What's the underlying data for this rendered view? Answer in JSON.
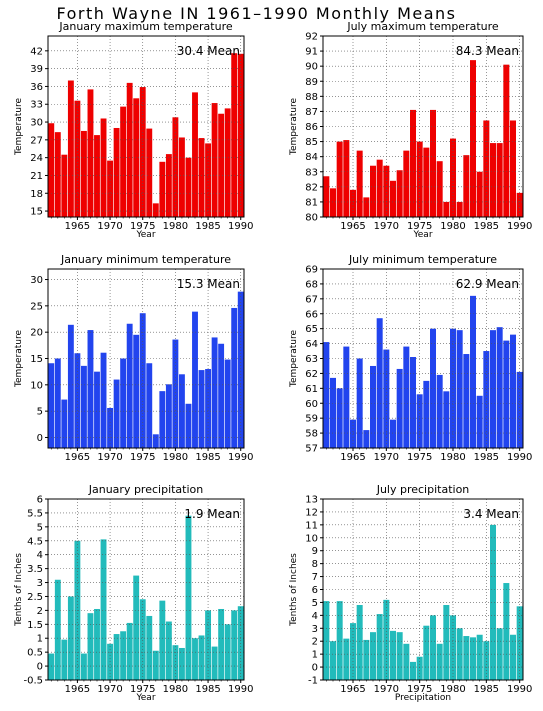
{
  "page": {
    "title": "Forth Wayne IN   1961–1990 Monthly Means"
  },
  "years": [
    1961,
    1962,
    1963,
    1964,
    1965,
    1966,
    1967,
    1968,
    1969,
    1970,
    1971,
    1972,
    1973,
    1974,
    1975,
    1976,
    1977,
    1978,
    1979,
    1980,
    1981,
    1982,
    1983,
    1984,
    1985,
    1986,
    1987,
    1988,
    1989,
    1990
  ],
  "chart_data": [
    {
      "type": "bar",
      "title": "January maximum temperature",
      "ylabel": "Temperature",
      "xlabel": "Year",
      "mean_label": "30.4  Mean",
      "color": "#ee0000",
      "ylim": [
        14,
        44.5
      ],
      "yticks": [
        15,
        18,
        21,
        24,
        27,
        30,
        33,
        36,
        39,
        42
      ],
      "xticks": [
        1965,
        1970,
        1975,
        1980,
        1985,
        1990
      ],
      "values": [
        29.8,
        28.3,
        24.5,
        37.0,
        33.6,
        28.5,
        35.5,
        27.8,
        30.6,
        23.5,
        29.0,
        32.6,
        36.6,
        34.0,
        35.9,
        28.9,
        16.3,
        23.3,
        24.6,
        30.8,
        27.4,
        24.0,
        35.0,
        27.3,
        26.4,
        33.2,
        31.4,
        32.3,
        41.6,
        41.5
      ]
    },
    {
      "type": "bar",
      "title": "July maximum temperature",
      "ylabel": "Temperature",
      "xlabel": "Year",
      "mean_label": "84.3  Mean",
      "color": "#ee0000",
      "ylim": [
        80,
        92
      ],
      "yticks": [
        80,
        81,
        82,
        83,
        84,
        85,
        86,
        87,
        88,
        89,
        90,
        91,
        92
      ],
      "xticks": [
        1965,
        1970,
        1975,
        1980,
        1985,
        1990
      ],
      "values": [
        82.7,
        81.9,
        85.0,
        85.1,
        81.8,
        84.4,
        81.3,
        83.4,
        83.8,
        83.4,
        82.4,
        83.1,
        84.4,
        87.1,
        85.0,
        84.6,
        87.1,
        83.7,
        81.0,
        85.2,
        81.0,
        84.1,
        90.4,
        83.0,
        86.4,
        84.9,
        84.9,
        90.1,
        86.4,
        81.6
      ]
    },
    {
      "type": "bar",
      "title": "January minimum temperature",
      "ylabel": "Temperature",
      "xlabel": "",
      "mean_label": "15.3  Mean",
      "color": "#2244ee",
      "ylim": [
        -2,
        32
      ],
      "yticks": [
        0,
        5,
        10,
        15,
        20,
        25,
        30
      ],
      "xticks": [
        1965,
        1970,
        1975,
        1980,
        1985,
        1990
      ],
      "values": [
        14.1,
        15.0,
        7.2,
        21.4,
        16.0,
        13.6,
        20.4,
        12.5,
        16.1,
        5.6,
        11.0,
        15.0,
        21.6,
        19.5,
        23.6,
        14.1,
        0.6,
        8.8,
        10.1,
        18.6,
        12.0,
        6.4,
        23.9,
        12.8,
        13.0,
        19.0,
        17.8,
        14.8,
        24.6,
        27.7
      ]
    },
    {
      "type": "bar",
      "title": "July minimum temperature",
      "ylabel": "Temperature",
      "xlabel": "",
      "mean_label": "62.9  Mean",
      "color": "#2244ee",
      "ylim": [
        57,
        69
      ],
      "yticks": [
        57,
        58,
        59,
        60,
        61,
        62,
        63,
        64,
        65,
        66,
        67,
        68,
        69
      ],
      "xticks": [
        1965,
        1970,
        1975,
        1980,
        1985,
        1990
      ],
      "values": [
        64.1,
        61.7,
        61.0,
        63.8,
        58.9,
        63.0,
        58.2,
        62.5,
        65.7,
        63.6,
        58.9,
        62.3,
        63.8,
        63.1,
        60.6,
        61.5,
        65.0,
        61.9,
        60.8,
        65.0,
        64.9,
        63.3,
        67.2,
        60.5,
        63.5,
        64.9,
        65.1,
        64.2,
        64.6,
        62.1
      ]
    },
    {
      "type": "bar",
      "title": "January precipitation",
      "ylabel": "Tenths of Inches",
      "xlabel": "Year",
      "mean_label": "1.9  Mean",
      "color": "#22bbbb",
      "ylim": [
        -0.5,
        6
      ],
      "yticks": [
        -0.5,
        0,
        0.5,
        1,
        1.5,
        2,
        2.5,
        3,
        3.5,
        4,
        4.5,
        5,
        5.5,
        6
      ],
      "xticks": [
        1965,
        1970,
        1975,
        1980,
        1985,
        1990
      ],
      "values": [
        0.45,
        3.1,
        0.95,
        2.5,
        4.5,
        0.45,
        1.9,
        2.05,
        4.55,
        0.8,
        1.15,
        1.25,
        1.55,
        3.25,
        2.4,
        1.8,
        0.55,
        2.35,
        1.6,
        0.75,
        0.65,
        5.4,
        1.0,
        1.1,
        2.0,
        0.7,
        2.05,
        1.5,
        2.0,
        2.15
      ]
    },
    {
      "type": "bar",
      "title": "July precipitation",
      "ylabel": "Tenths of Inches",
      "xlabel": "Precipitation",
      "mean_label": "3.4  Mean",
      "color": "#22bbbb",
      "ylim": [
        -1,
        13
      ],
      "yticks": [
        -1,
        0,
        1,
        2,
        3,
        4,
        5,
        6,
        7,
        8,
        9,
        10,
        11,
        12,
        13
      ],
      "xticks": [
        1965,
        1970,
        1975,
        1980,
        1985,
        1990
      ],
      "values": [
        5.1,
        2.0,
        5.1,
        2.2,
        3.4,
        4.8,
        2.1,
        2.7,
        4.1,
        5.2,
        2.8,
        2.7,
        1.8,
        0.4,
        0.8,
        3.2,
        4.0,
        1.8,
        4.8,
        4.0,
        3.0,
        2.4,
        2.3,
        2.5,
        2.0,
        11.0,
        3.0,
        6.5,
        2.5,
        4.7
      ]
    }
  ]
}
